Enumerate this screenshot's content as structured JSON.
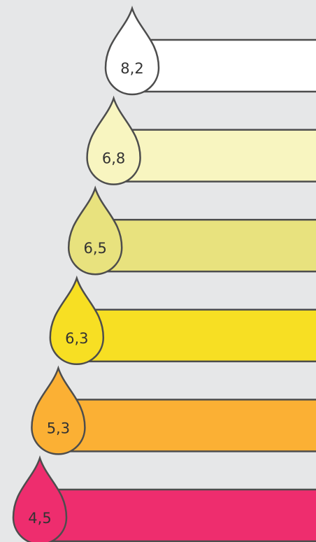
{
  "items": [
    {
      "label": "8,2",
      "color": "#ffffff"
    },
    {
      "label": "6,8",
      "color": "#f8f5c0"
    },
    {
      "label": "6,5",
      "color": "#e8e27e"
    },
    {
      "label": "6,3",
      "color": "#f7df23"
    },
    {
      "label": "5,3",
      "color": "#fbb034"
    },
    {
      "label": "4,5",
      "color": "#ee2d6e"
    }
  ]
}
